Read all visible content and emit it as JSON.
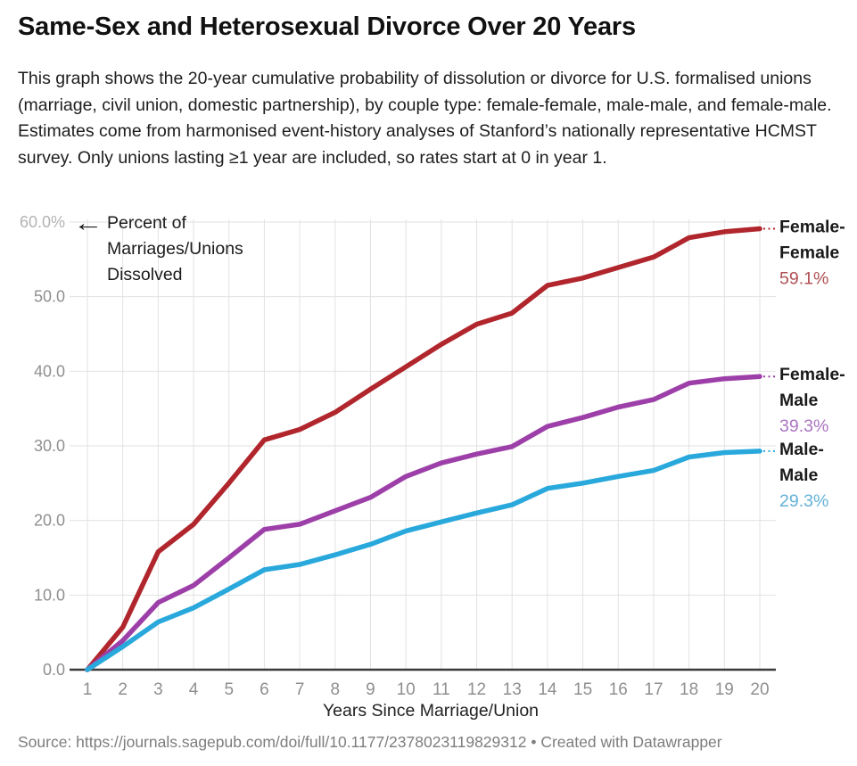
{
  "header": {
    "title": "Same-Sex and Heterosexual Divorce Over 20 Years",
    "description": "This graph shows the 20-year cumulative probability of dissolution or divorce for U.S. formalised unions (marriage, civil union, domestic partnership), by couple type: female-female, male-male, and female-male. Estimates come from harmonised event-history analyses of Stanford’s nationally representative HCMST survey. Only unions lasting ≥1 year are included, so rates start at 0 in year 1."
  },
  "annotation": {
    "arrow": "←",
    "lines": [
      "Percent of",
      "Marriages/Unions",
      "Dissolved"
    ]
  },
  "footer": {
    "source": "Source: https://journals.sagepub.com/doi/full/10.1177/2378023119829312 • Created with Datawrapper"
  },
  "colors": {
    "background": "#ffffff",
    "grid": "#e2e2e2",
    "axis_line": "#3a3a3a",
    "tick_label": "#8f8f8f",
    "top_tick_label": "#b3b3b3",
    "axis_title": "#222222",
    "label_text": "#1a1a1a"
  },
  "chart_data": {
    "type": "line",
    "title": "Same-Sex and Heterosexual Divorce Over 20 Years",
    "xlabel": "Years Since Marriage/Union",
    "ylabel": "Percent of Marriages/Unions Dissolved",
    "x": [
      1,
      2,
      3,
      4,
      5,
      6,
      7,
      8,
      9,
      10,
      11,
      12,
      13,
      14,
      15,
      16,
      17,
      18,
      19,
      20
    ],
    "ylim": [
      0,
      60
    ],
    "grid": true,
    "legend_position": "right-end-labels",
    "y_ticks": [
      {
        "value": 60,
        "label": "60.0%"
      },
      {
        "value": 50,
        "label": "50.0"
      },
      {
        "value": 40,
        "label": "40.0"
      },
      {
        "value": 30,
        "label": "30.0"
      },
      {
        "value": 20,
        "label": "20.0"
      },
      {
        "value": 10,
        "label": "10.0"
      },
      {
        "value": 0,
        "label": "0.0"
      }
    ],
    "series": [
      {
        "name": "Female-Female",
        "label_lines": [
          "Female-",
          "Female"
        ],
        "end_label": "59.1%",
        "color": "#b0262c",
        "value_color": "#b04f54",
        "values": [
          0,
          5.7,
          15.8,
          19.5,
          25.0,
          30.8,
          32.2,
          34.5,
          37.6,
          40.6,
          43.6,
          46.3,
          47.8,
          51.5,
          52.5,
          53.9,
          55.3,
          57.9,
          58.7,
          59.1
        ]
      },
      {
        "name": "Female-Male",
        "label_lines": [
          "Female-",
          "Male"
        ],
        "end_label": "39.3%",
        "color": "#9d3fa8",
        "value_color": "#aa75c1",
        "values": [
          0,
          3.9,
          9.0,
          11.3,
          15.0,
          18.8,
          19.5,
          21.3,
          23.1,
          25.9,
          27.7,
          28.9,
          29.9,
          32.6,
          33.8,
          35.2,
          36.2,
          38.4,
          39.0,
          39.3
        ]
      },
      {
        "name": "Male-Male",
        "label_lines": [
          "Male-",
          "Male"
        ],
        "end_label": "29.3%",
        "color": "#29a8dc",
        "value_color": "#64b1d8",
        "values": [
          0,
          3.1,
          6.4,
          8.3,
          10.8,
          13.4,
          14.1,
          15.4,
          16.8,
          18.6,
          19.8,
          21.0,
          22.1,
          24.3,
          25.0,
          25.9,
          26.7,
          28.5,
          29.1,
          29.3
        ]
      }
    ]
  }
}
